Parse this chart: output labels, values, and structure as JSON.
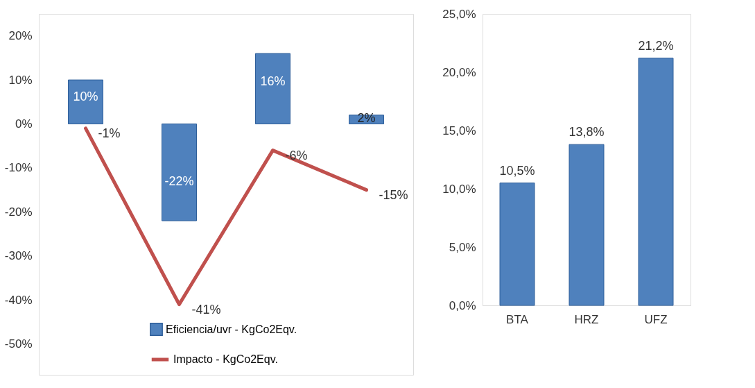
{
  "chart_data": [
    {
      "type": "bar",
      "categories": [
        null,
        null,
        null,
        null
      ],
      "ylim": [
        -57,
        25
      ],
      "yticks": [
        {
          "value": 20,
          "label": "20%"
        },
        {
          "value": 10,
          "label": "10%"
        },
        {
          "value": 0,
          "label": "0%"
        },
        {
          "value": -10,
          "label": "-10%"
        },
        {
          "value": -20,
          "label": "-20%"
        },
        {
          "value": -30,
          "label": "-30%"
        },
        {
          "value": -40,
          "label": "-40%"
        },
        {
          "value": -50,
          "label": "-50%"
        }
      ],
      "tick_labels": "y",
      "grid": false,
      "legend": "bottom",
      "series": [
        {
          "type": "bar",
          "name": "Eficiencia/uvr - KgCo2Eqv.",
          "color": "#4f81bd",
          "values": [
            10,
            -22,
            16,
            2
          ],
          "value_labels": [
            "10%",
            "-22%",
            "16%",
            "2%"
          ]
        },
        {
          "type": "line",
          "name": "Impacto - KgCo2Eqv.",
          "color": "#c0504d",
          "values": [
            -1,
            -41,
            -6,
            -15
          ],
          "value_labels": [
            "-1%",
            "-41%",
            "-6%",
            "-15%"
          ]
        }
      ]
    },
    {
      "type": "bar",
      "categories": [
        "BTA",
        "HRZ",
        "UFZ"
      ],
      "values": [
        10.5,
        13.8,
        21.2
      ],
      "color": "#4f81bd",
      "value_labels": [
        "10,5%",
        "13,8%",
        "21,2%"
      ],
      "ylim": [
        0,
        25
      ],
      "yticks": [
        {
          "value": 0,
          "label": "0,0%"
        },
        {
          "value": 5,
          "label": "5,0%"
        },
        {
          "value": 10,
          "label": "10,0%"
        },
        {
          "value": 15,
          "label": "15,0%"
        },
        {
          "value": 20,
          "label": "20,0%"
        },
        {
          "value": 25,
          "label": "25,0%"
        }
      ],
      "grid": false
    }
  ]
}
